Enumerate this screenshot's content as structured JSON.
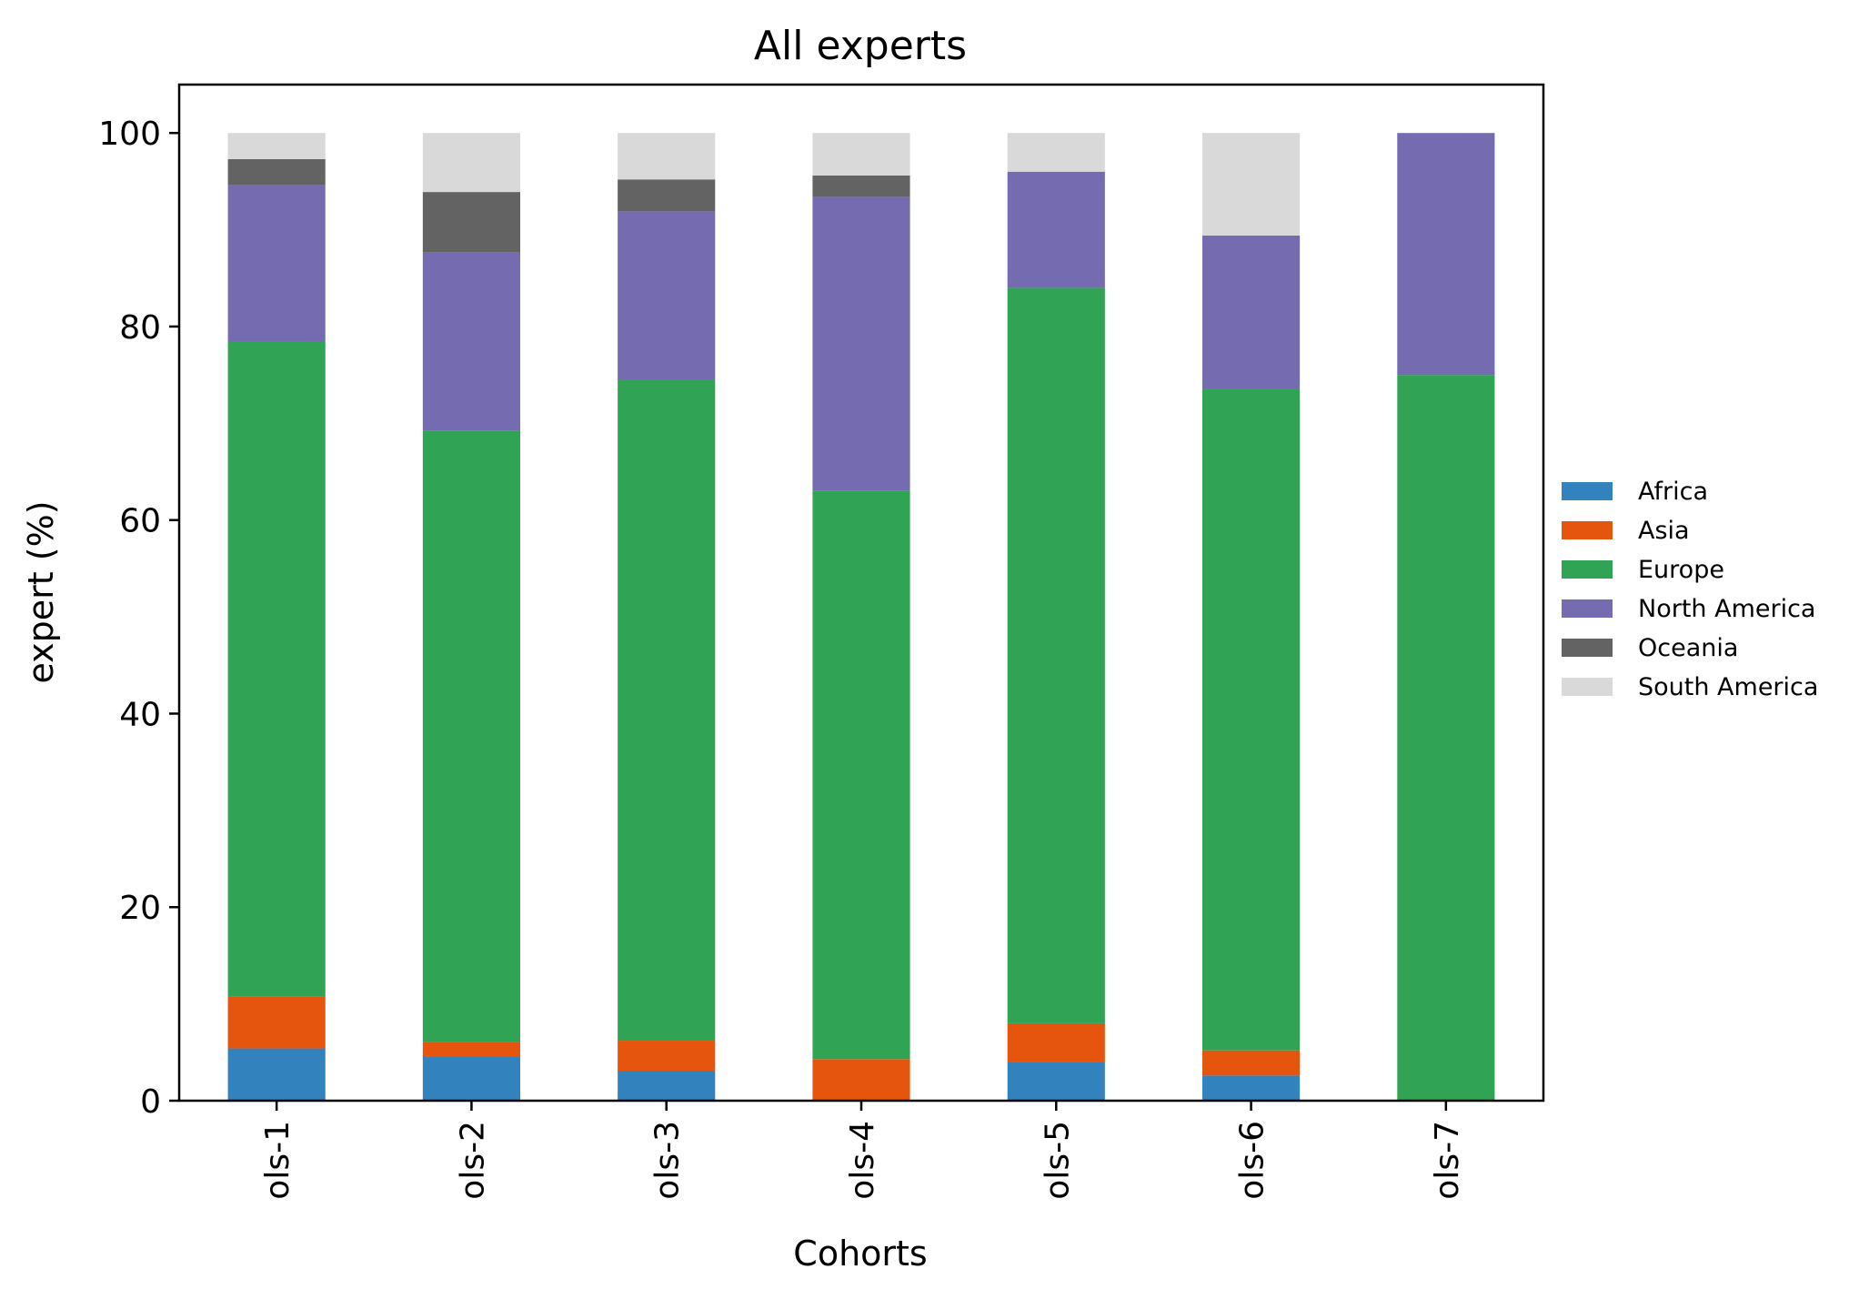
{
  "chart_data": {
    "type": "bar",
    "stacked": true,
    "title": "All experts",
    "xlabel": "Cohorts",
    "ylabel": "expert (%)",
    "ylim": [
      0,
      105
    ],
    "yticks": [
      0,
      20,
      40,
      60,
      80,
      100
    ],
    "grid": false,
    "legend_position": "right",
    "categories": [
      "ols-1",
      "ols-2",
      "ols-3",
      "ols-4",
      "ols-5",
      "ols-6",
      "ols-7"
    ],
    "series": [
      {
        "name": "Africa",
        "color": "#3182bd",
        "values": [
          5.4,
          4.6,
          3.1,
          0.0,
          4.0,
          2.6,
          0.0
        ]
      },
      {
        "name": "Asia",
        "color": "#e6550d",
        "values": [
          5.4,
          1.5,
          3.1,
          4.3,
          4.0,
          2.6,
          0.0
        ]
      },
      {
        "name": "Europe",
        "color": "#31a354",
        "values": [
          67.6,
          63.1,
          68.3,
          58.7,
          76.0,
          68.4,
          75.0
        ]
      },
      {
        "name": "North America",
        "color": "#756bb1",
        "values": [
          16.2,
          18.5,
          17.4,
          30.4,
          12.0,
          15.8,
          25.0
        ]
      },
      {
        "name": "Oceania",
        "color": "#636363",
        "values": [
          2.7,
          6.2,
          3.3,
          2.2,
          0.0,
          0.0,
          0.0
        ]
      },
      {
        "name": "South America",
        "color": "#d9d9d9",
        "values": [
          2.7,
          6.1,
          4.8,
          4.4,
          4.0,
          10.6,
          0.0
        ]
      }
    ]
  }
}
